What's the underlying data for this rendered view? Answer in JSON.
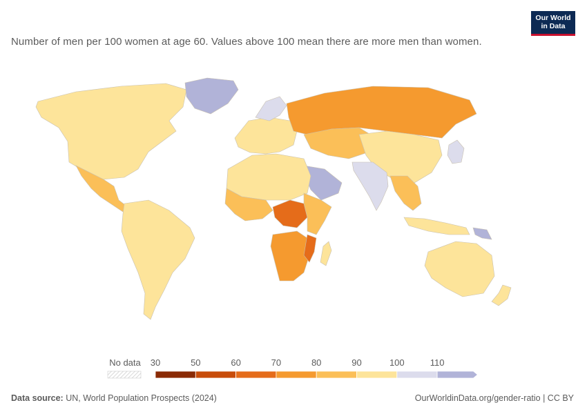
{
  "header": {
    "subtitle": "Number of men per 100 women at age 60. Values above 100 mean there are more men than women.",
    "logo_line1": "Our World",
    "logo_line2": "in Data"
  },
  "legend": {
    "no_data_label": "No data",
    "ticks": [
      "30",
      "50",
      "60",
      "70",
      "80",
      "90",
      "100",
      "110"
    ],
    "bins": [
      {
        "range": "30-50",
        "color": "#8a2a05"
      },
      {
        "range": "50-60",
        "color": "#c84c0a"
      },
      {
        "range": "60-70",
        "color": "#e56c1a"
      },
      {
        "range": "70-80",
        "color": "#f59a2f"
      },
      {
        "range": "80-90",
        "color": "#fbbf58"
      },
      {
        "range": "90-100",
        "color": "#fde49a"
      },
      {
        "range": "100-110",
        "color": "#dcdcec"
      },
      {
        "range": ">110",
        "color": "#b1b3d8"
      }
    ]
  },
  "footer": {
    "source_label": "Data source:",
    "source_text": "UN, World Population Prospects (2024)",
    "url_text": "OurWorldinData.org/gender-ratio | CC BY"
  },
  "regions": [
    {
      "name": "north-america",
      "color": "#fde49a"
    },
    {
      "name": "greenland",
      "color": "#b1b3d8"
    },
    {
      "name": "mexico-central-america",
      "color": "#fbbf58"
    },
    {
      "name": "south-america",
      "color": "#fde49a"
    },
    {
      "name": "europe",
      "color": "#fde49a"
    },
    {
      "name": "scandinavia",
      "color": "#dcdcec"
    },
    {
      "name": "russia",
      "color": "#f59a2f"
    },
    {
      "name": "central-asia",
      "color": "#fbbf58"
    },
    {
      "name": "china",
      "color": "#fde49a"
    },
    {
      "name": "india",
      "color": "#dcdcec"
    },
    {
      "name": "arabian-peninsula",
      "color": "#b1b3d8"
    },
    {
      "name": "north-africa",
      "color": "#fde49a"
    },
    {
      "name": "west-africa",
      "color": "#fbbf58"
    },
    {
      "name": "central-africa",
      "color": "#e56c1a"
    },
    {
      "name": "east-africa",
      "color": "#fbbf58"
    },
    {
      "name": "southern-africa",
      "color": "#f59a2f"
    },
    {
      "name": "mozambique",
      "color": "#e56c1a"
    },
    {
      "name": "madagascar",
      "color": "#fde49a"
    },
    {
      "name": "southeast-asia",
      "color": "#fbbf58"
    },
    {
      "name": "indonesia",
      "color": "#fde49a"
    },
    {
      "name": "japan",
      "color": "#dcdcec"
    },
    {
      "name": "australia",
      "color": "#fde49a"
    },
    {
      "name": "new-zealand",
      "color": "#fde49a"
    },
    {
      "name": "papua-new-guinea",
      "color": "#b1b3d8"
    }
  ]
}
